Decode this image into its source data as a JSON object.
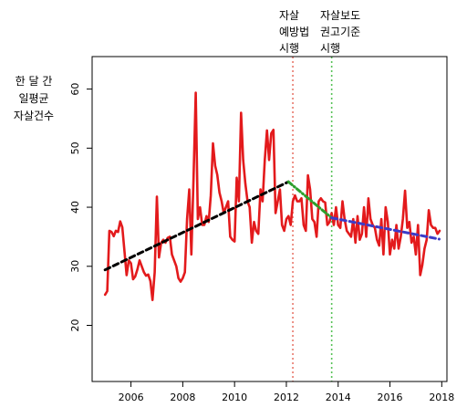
{
  "chart_data": {
    "type": "line",
    "title": "",
    "xlabel": "",
    "ylabel_lines": [
      "한 달 간",
      "일평균",
      "자살건수"
    ],
    "xlim": [
      2004.5,
      2018.2
    ],
    "ylim": [
      10.5,
      65.5
    ],
    "x_ticks": [
      2006,
      2008,
      2010,
      2012,
      2014,
      2016,
      2018
    ],
    "y_ticks": [
      20,
      30,
      40,
      50,
      60
    ],
    "grid": false,
    "series": [
      {
        "color": "#e31a1c",
        "style": "solid",
        "x": [
          2005.0,
          2005.083,
          2005.167,
          2005.25,
          2005.333,
          2005.417,
          2005.5,
          2005.583,
          2005.667,
          2005.75,
          2005.833,
          2005.917,
          2006.0,
          2006.083,
          2006.167,
          2006.25,
          2006.333,
          2006.417,
          2006.5,
          2006.583,
          2006.667,
          2006.75,
          2006.833,
          2006.917,
          2007.0,
          2007.083,
          2007.167,
          2007.25,
          2007.333,
          2007.417,
          2007.5,
          2007.583,
          2007.667,
          2007.75,
          2007.833,
          2007.917,
          2008.0,
          2008.083,
          2008.167,
          2008.25,
          2008.333,
          2008.417,
          2008.5,
          2008.583,
          2008.667,
          2008.75,
          2008.833,
          2008.917,
          2009.0,
          2009.083,
          2009.167,
          2009.25,
          2009.333,
          2009.417,
          2009.5,
          2009.583,
          2009.667,
          2009.75,
          2009.833,
          2009.917,
          2010.0,
          2010.083,
          2010.167,
          2010.25,
          2010.333,
          2010.417,
          2010.5,
          2010.583,
          2010.667,
          2010.75,
          2010.833,
          2010.917,
          2011.0,
          2011.083,
          2011.167,
          2011.25,
          2011.333,
          2011.417,
          2011.5,
          2011.583,
          2011.667,
          2011.75,
          2011.833,
          2011.917,
          2012.0,
          2012.083,
          2012.167,
          2012.25,
          2012.333,
          2012.417,
          2012.5,
          2012.583,
          2012.667,
          2012.75,
          2012.833,
          2012.917,
          2013.0,
          2013.083,
          2013.167,
          2013.25,
          2013.333,
          2013.417,
          2013.5,
          2013.583,
          2013.667,
          2013.75,
          2013.833,
          2013.917,
          2014.0,
          2014.083,
          2014.167,
          2014.25,
          2014.333,
          2014.417,
          2014.5,
          2014.583,
          2014.667,
          2014.75,
          2014.833,
          2014.917,
          2015.0,
          2015.083,
          2015.167,
          2015.25,
          2015.333,
          2015.417,
          2015.5,
          2015.583,
          2015.667,
          2015.75,
          2015.833,
          2015.917,
          2016.0,
          2016.083,
          2016.167,
          2016.25,
          2016.333,
          2016.417,
          2016.5,
          2016.583,
          2016.667,
          2016.75,
          2016.833,
          2016.917,
          2017.0,
          2017.083,
          2017.167,
          2017.25,
          2017.333,
          2017.417,
          2017.5,
          2017.583,
          2017.667,
          2017.75,
          2017.833,
          2017.917
        ],
        "y": [
          25.2,
          25.8,
          36.0,
          35.8,
          35.1,
          36.0,
          35.8,
          37.6,
          36.6,
          32.5,
          28.5,
          31.0,
          30.5,
          27.8,
          28.3,
          29.5,
          31.0,
          30.0,
          29.0,
          28.4,
          28.6,
          27.5,
          24.3,
          29.0,
          41.8,
          31.5,
          34.0,
          34.5,
          34.0,
          34.8,
          35.0,
          32.0,
          31.0,
          30.0,
          28.0,
          27.4,
          28.0,
          29.0,
          38.0,
          43.0,
          32.0,
          45.0,
          59.4,
          38.0,
          40.0,
          37.0,
          37.0,
          38.5,
          37.5,
          42.0,
          50.8,
          47.0,
          45.5,
          42.5,
          41.0,
          39.0,
          40.0,
          41.0,
          35.0,
          34.5,
          34.2,
          45.0,
          41.0,
          56.0,
          48.0,
          44.0,
          41.0,
          40.0,
          34.0,
          37.5,
          36.0,
          35.5,
          43.0,
          41.0,
          48.0,
          53.0,
          48.0,
          52.5,
          53.1,
          39.0,
          41.0,
          43.0,
          37.0,
          36.0,
          38.0,
          38.5,
          37.0,
          41.0,
          42.0,
          41.0,
          41.0,
          41.5,
          37.0,
          36.0,
          45.4,
          43.0,
          38.0,
          37.5,
          35.0,
          41.0,
          41.5,
          41.0,
          40.8,
          37.0,
          37.5,
          39.0,
          37.0,
          40.0,
          37.0,
          36.5,
          41.0,
          38.0,
          36.0,
          35.5,
          35.0,
          38.0,
          34.0,
          38.5,
          34.5,
          35.5,
          40.0,
          35.0,
          41.5,
          38.0,
          37.0,
          36.5,
          34.5,
          33.5,
          38.0,
          32.0,
          40.0,
          37.5,
          32.0,
          34.5,
          33.0,
          37.0,
          33.0,
          35.0,
          38.0,
          42.8,
          36.5,
          37.5,
          34.0,
          35.0,
          32.0,
          37.0,
          28.5,
          30.2,
          33.0,
          34.5,
          39.5,
          37.0,
          36.5,
          36.5,
          35.5,
          36.0
        ]
      },
      {
        "color": "#000000",
        "style": "dashed",
        "x": [
          2005.0,
          2012.08
        ],
        "y": [
          29.4,
          44.3
        ]
      },
      {
        "color": "#2ca02c",
        "style": "dotted-dash",
        "x": [
          2012.08,
          2013.75
        ],
        "y": [
          44.3,
          38.2
        ]
      },
      {
        "color": "#3b3bc8",
        "style": "dashed",
        "x": [
          2013.75,
          2017.9
        ],
        "y": [
          38.2,
          34.6
        ]
      }
    ],
    "vlines": [
      {
        "x": 2012.25,
        "color": "#e8776b"
      },
      {
        "x": 2013.75,
        "color": "#58c258"
      }
    ],
    "annotations": [
      {
        "lines": [
          "자살",
          "예방법",
          "시행"
        ]
      },
      {
        "lines": [
          "자살보도",
          "권고기준",
          "시행"
        ]
      }
    ]
  }
}
